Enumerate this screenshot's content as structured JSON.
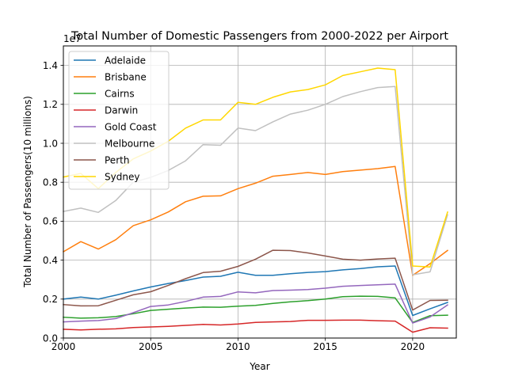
{
  "chart_data": {
    "type": "line",
    "title": "Total Number of Domestic Passengers from 2000-2022 per Airport",
    "xlabel": "Year",
    "ylabel": "Total Number of Passengers(10 millions)",
    "y_offset_label": "1e7",
    "xlim": [
      2000,
      2022.5
    ],
    "ylim": [
      0,
      1.5
    ],
    "x_ticks": [
      2000,
      2005,
      2010,
      2015,
      2020
    ],
    "y_ticks": [
      0.0,
      0.2,
      0.4,
      0.6,
      0.8,
      1.0,
      1.2,
      1.4
    ],
    "y_tick_labels": [
      "0.0",
      "0.2",
      "0.4",
      "0.6",
      "0.8",
      "1.0",
      "1.2",
      "1.4"
    ],
    "grid": true,
    "legend_position": "top-left",
    "x": [
      2000,
      2001,
      2002,
      2003,
      2004,
      2005,
      2006,
      2007,
      2008,
      2009,
      2010,
      2011,
      2012,
      2013,
      2014,
      2015,
      2016,
      2017,
      2018,
      2019,
      2020,
      2021,
      2022
    ],
    "series": [
      {
        "name": "Adelaide",
        "color": "#1f77b4",
        "values": [
          0.2,
          0.21,
          0.2,
          0.22,
          0.242,
          0.262,
          0.28,
          0.295,
          0.313,
          0.317,
          0.338,
          0.322,
          0.322,
          0.33,
          0.337,
          0.341,
          0.35,
          0.357,
          0.366,
          0.37,
          0.116,
          0.15,
          0.183
        ]
      },
      {
        "name": "Brisbane",
        "color": "#ff7f0e",
        "values": [
          0.443,
          0.495,
          0.457,
          0.505,
          0.577,
          0.607,
          0.647,
          0.7,
          0.728,
          0.73,
          0.767,
          0.795,
          0.831,
          0.84,
          0.85,
          0.84,
          0.855,
          0.862,
          0.87,
          0.881,
          0.322,
          0.382,
          0.45
        ]
      },
      {
        "name": "Cairns",
        "color": "#2ca02c",
        "values": [
          0.107,
          0.102,
          0.104,
          0.11,
          0.125,
          0.142,
          0.148,
          0.154,
          0.159,
          0.158,
          0.164,
          0.168,
          0.178,
          0.186,
          0.192,
          0.2,
          0.212,
          0.215,
          0.214,
          0.206,
          0.08,
          0.115,
          0.117
        ]
      },
      {
        "name": "Darwin",
        "color": "#d62728",
        "values": [
          0.045,
          0.042,
          0.045,
          0.047,
          0.054,
          0.057,
          0.06,
          0.065,
          0.07,
          0.067,
          0.072,
          0.08,
          0.083,
          0.085,
          0.091,
          0.091,
          0.092,
          0.092,
          0.089,
          0.087,
          0.03,
          0.053,
          0.051
        ]
      },
      {
        "name": "Gold Coast",
        "color": "#9467bd",
        "values": [
          0.083,
          0.087,
          0.09,
          0.1,
          0.13,
          0.162,
          0.17,
          0.188,
          0.21,
          0.214,
          0.237,
          0.232,
          0.244,
          0.246,
          0.249,
          0.256,
          0.266,
          0.27,
          0.273,
          0.277,
          0.077,
          0.108,
          0.17
        ]
      },
      {
        "name": "Melbourne",
        "color": "#c0c0c0",
        "values": [
          0.65,
          0.667,
          0.645,
          0.706,
          0.8,
          0.825,
          0.86,
          0.91,
          0.993,
          0.99,
          1.078,
          1.065,
          1.11,
          1.15,
          1.17,
          1.2,
          1.24,
          1.265,
          1.286,
          1.292,
          0.325,
          0.34,
          0.633
        ]
      },
      {
        "name": "Perth",
        "color": "#8c564b",
        "values": [
          0.172,
          0.165,
          0.166,
          0.194,
          0.222,
          0.238,
          0.27,
          0.305,
          0.336,
          0.343,
          0.368,
          0.405,
          0.451,
          0.449,
          0.437,
          0.421,
          0.405,
          0.4,
          0.406,
          0.41,
          0.144,
          0.193,
          0.194
        ]
      },
      {
        "name": "Sydney",
        "color": "#ffd700",
        "values": [
          0.827,
          0.845,
          0.767,
          0.85,
          0.92,
          0.96,
          1.01,
          1.078,
          1.12,
          1.12,
          1.21,
          1.2,
          1.236,
          1.264,
          1.276,
          1.3,
          1.348,
          1.367,
          1.386,
          1.378,
          0.37,
          0.365,
          0.647
        ]
      }
    ]
  }
}
